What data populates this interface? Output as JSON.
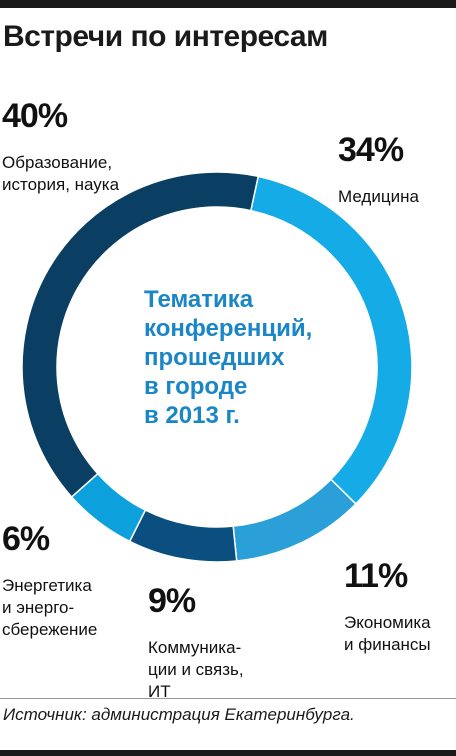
{
  "title": "Встречи по интересам",
  "center_text": "Тематика\nконференций,\nпрошедших\nв городе\nв 2013 г.",
  "source": "Источник: администрация Екатеринбурга.",
  "labels": [
    {
      "pct": "40%",
      "desc": "Образование,\nистория, наука"
    },
    {
      "pct": "34%",
      "desc": "Медицина"
    },
    {
      "pct": "11%",
      "desc": "Экономика\nи финансы"
    },
    {
      "pct": "9%",
      "desc": "Коммуника-\nции и связь,\nИТ"
    },
    {
      "pct": "6%",
      "desc": "Энергетика\nи энерго-\nсбережение"
    }
  ],
  "chart_data": {
    "type": "pie",
    "donut": true,
    "center_label": "Тематика конференций, прошедших в городе в 2013 г.",
    "categories": [
      "Образование, история, наука",
      "Медицина",
      "Экономика и финансы",
      "Коммуникации и связь, ИТ",
      "Энергетика и энергосбережение"
    ],
    "values": [
      40,
      34,
      11,
      9,
      6
    ],
    "unit": "%",
    "colors": [
      "#0b3e63",
      "#14abe6",
      "#2b9fd7",
      "#0b4f80",
      "#0ca0dc"
    ]
  }
}
